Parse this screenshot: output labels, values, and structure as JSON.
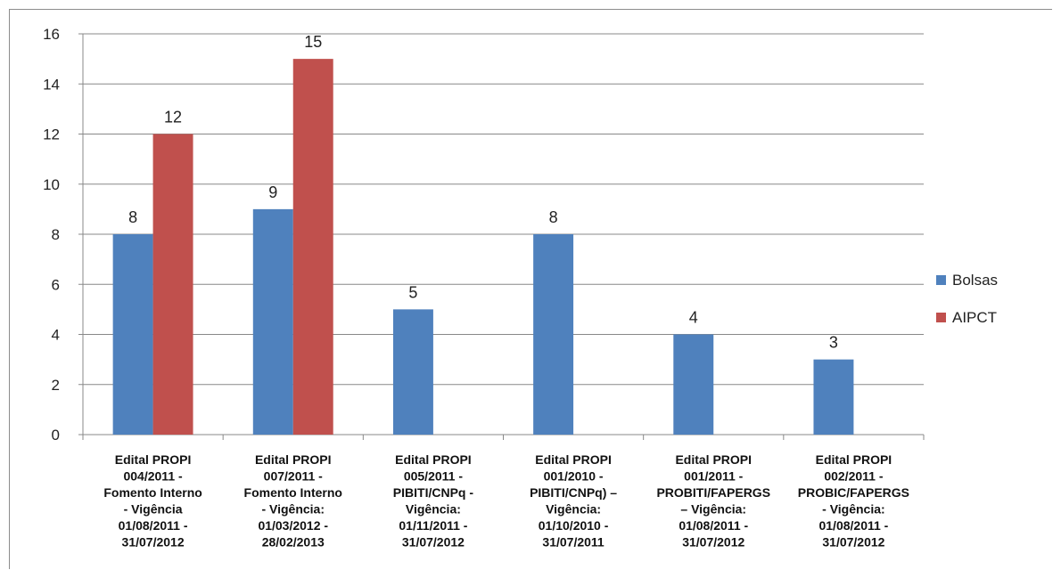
{
  "chart_data": {
    "type": "bar",
    "categories": [
      [
        "Edital PROPI",
        "004/2011 -",
        "Fomento Interno",
        "- Vigência",
        "01/08/2011 -",
        "31/07/2012"
      ],
      [
        "Edital PROPI",
        "007/2011 -",
        "Fomento Interno",
        "- Vigência:",
        "01/03/2012 -",
        "28/02/2013"
      ],
      [
        "Edital PROPI",
        "005/2011 -",
        "PIBITI/CNPq -",
        "Vigência:",
        "01/11/2011 -",
        "31/07/2012"
      ],
      [
        "Edital PROPI",
        "001/2010 -",
        "PIBITI/CNPq) –",
        "Vigência:",
        "01/10/2010 -",
        "31/07/2011"
      ],
      [
        "Edital PROPI",
        "001/2011 -",
        "PROBITI/FAPERGS",
        "– Vigência:",
        "01/08/2011 -",
        "31/07/2012"
      ],
      [
        "Edital PROPI",
        "002/2011 -",
        "PROBIC/FAPERGS",
        "- Vigência:",
        "01/08/2011 -",
        "31/07/2012"
      ]
    ],
    "series": [
      {
        "name": "Bolsas",
        "values": [
          8,
          9,
          5,
          8,
          4,
          3
        ],
        "color": "#4f81bd"
      },
      {
        "name": "AIPCT",
        "values": [
          12,
          15,
          null,
          null,
          null,
          null
        ],
        "color": "#c0504d"
      }
    ],
    "ylim": [
      0,
      16
    ],
    "yticks": [
      0,
      2,
      4,
      6,
      8,
      10,
      12,
      14,
      16
    ],
    "grid": true,
    "legend_position": "right"
  }
}
